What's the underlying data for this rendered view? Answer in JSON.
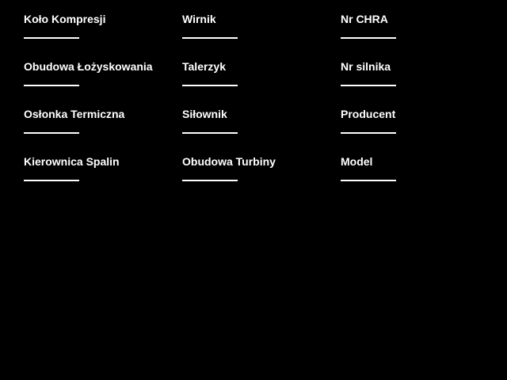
{
  "app": {
    "background_color": "#000000",
    "text_color": "#ffffff",
    "underline_color": "#ffffff"
  },
  "form": {
    "columns": [
      {
        "fields": [
          {
            "label": "Koło Kompresji",
            "value": ""
          },
          {
            "label": "Obudowa Łożyskowania",
            "value": ""
          },
          {
            "label": "Osłonka Termiczna",
            "value": ""
          },
          {
            "label": "Kierownica Spalin",
            "value": ""
          }
        ]
      },
      {
        "fields": [
          {
            "label": "Wirnik",
            "value": ""
          },
          {
            "label": "Talerzyk",
            "value": ""
          },
          {
            "label": "Siłownik",
            "value": ""
          },
          {
            "label": "Obudowa Turbiny",
            "value": ""
          }
        ]
      },
      {
        "fields": [
          {
            "label": "Nr CHRA",
            "value": ""
          },
          {
            "label": "Nr silnika",
            "value": ""
          },
          {
            "label": "Producent",
            "value": ""
          },
          {
            "label": "Model",
            "value": ""
          }
        ]
      }
    ]
  }
}
